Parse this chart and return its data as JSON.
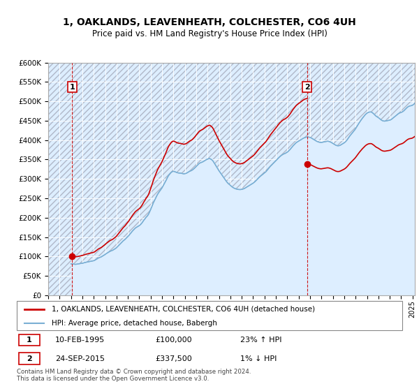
{
  "title": "1, OAKLANDS, LEAVENHEATH, COLCHESTER, CO6 4UH",
  "subtitle": "Price paid vs. HM Land Registry's House Price Index (HPI)",
  "legend_line1": "1, OAKLANDS, LEAVENHEATH, COLCHESTER, CO6 4UH (detached house)",
  "legend_line2": "HPI: Average price, detached house, Babergh",
  "annotation1_label": "1",
  "annotation1_date": "10-FEB-1995",
  "annotation1_price": "£100,000",
  "annotation1_hpi": "23% ↑ HPI",
  "annotation2_label": "2",
  "annotation2_date": "24-SEP-2015",
  "annotation2_price": "£337,500",
  "annotation2_hpi": "1% ↓ HPI",
  "sale1_x": 1995.11,
  "sale1_y": 100000,
  "sale2_x": 2015.73,
  "sale2_y": 337500,
  "xmin": 1993.0,
  "xmax": 2025.2,
  "ymin": 0,
  "ymax": 600000,
  "yticks": [
    0,
    50000,
    100000,
    150000,
    200000,
    250000,
    300000,
    350000,
    400000,
    450000,
    500000,
    550000,
    600000
  ],
  "ytick_labels": [
    "£0",
    "£50K",
    "£100K",
    "£150K",
    "£200K",
    "£250K",
    "£300K",
    "£350K",
    "£400K",
    "£450K",
    "£500K",
    "£550K",
    "£600K"
  ],
  "line_color_red": "#cc0000",
  "line_color_blue": "#7aafd4",
  "plot_bg": "#ddeeff",
  "footer": "Contains HM Land Registry data © Crown copyright and database right 2024.\nThis data is licensed under the Open Government Licence v3.0.",
  "hpi_monthly": {
    "start_year": 1995,
    "start_month": 1,
    "values": [
      81000,
      80500,
      80200,
      80000,
      79800,
      79600,
      80000,
      80300,
      80600,
      81000,
      81500,
      82000,
      82500,
      83000,
      83800,
      84500,
      85000,
      85500,
      86000,
      86500,
      87000,
      87500,
      88000,
      88500,
      89000,
      90000,
      91500,
      93000,
      94500,
      96000,
      97000,
      98000,
      99000,
      100500,
      102000,
      103500,
      105000,
      107000,
      108500,
      110000,
      111500,
      113000,
      114000,
      115000,
      116000,
      117500,
      119000,
      120500,
      122500,
      125000,
      127500,
      130000,
      132500,
      135000,
      137500,
      140000,
      142000,
      144000,
      146500,
      149000,
      151500,
      154000,
      157000,
      160000,
      163000,
      166000,
      168500,
      171000,
      173500,
      175000,
      176500,
      178000,
      179500,
      181500,
      184000,
      187000,
      190500,
      194000,
      197000,
      200500,
      203000,
      206000,
      210000,
      215500,
      221000,
      227000,
      233000,
      239000,
      244000,
      249000,
      254000,
      259000,
      263000,
      266500,
      270000,
      273500,
      277000,
      281500,
      286000,
      290500,
      295000,
      300000,
      305000,
      309000,
      312000,
      315000,
      317500,
      319000,
      319500,
      319000,
      318000,
      317000,
      316000,
      315500,
      315000,
      315000,
      314500,
      314000,
      313500,
      313000,
      313500,
      314000,
      315000,
      316500,
      318000,
      319500,
      320500,
      321500,
      323000,
      325000,
      327000,
      329500,
      332000,
      334500,
      337000,
      339500,
      341000,
      342000,
      343000,
      344000,
      345500,
      347000,
      348500,
      350000,
      351000,
      352000,
      352500,
      351500,
      350000,
      348000,
      345000,
      341000,
      337000,
      333000,
      329000,
      325000,
      321000,
      317500,
      314000,
      310500,
      307000,
      303500,
      300000,
      296500,
      293000,
      290000,
      287500,
      285500,
      283500,
      281000,
      279000,
      277500,
      276000,
      275000,
      274000,
      273500,
      273000,
      272500,
      272500,
      272500,
      273000,
      273500,
      274500,
      275500,
      277000,
      278500,
      280000,
      281500,
      283000,
      284500,
      286000,
      287500,
      289000,
      291000,
      293000,
      295500,
      298000,
      300500,
      303000,
      305500,
      307500,
      309500,
      311500,
      313500,
      315500,
      317500,
      320000,
      323000,
      326000,
      329000,
      332000,
      334500,
      337000,
      339500,
      342000,
      344500,
      347000,
      349500,
      352000,
      354500,
      357000,
      359000,
      361000,
      362500,
      364000,
      365000,
      366000,
      367500,
      369000,
      371000,
      373500,
      376000,
      379000,
      382000,
      385000,
      387500,
      390000,
      392500,
      394500,
      396000,
      397500,
      399000,
      400500,
      402000,
      403500,
      405000,
      406000,
      407000,
      407500,
      408000,
      408000,
      407500,
      407000,
      406000,
      404500,
      403000,
      401500,
      400000,
      398500,
      397000,
      396000,
      395000,
      394500,
      394000,
      394000,
      394500,
      395000,
      395500,
      396000,
      396500,
      397000,
      397000,
      396500,
      395500,
      394500,
      393000,
      391500,
      390000,
      388500,
      387000,
      386000,
      385500,
      385500,
      386000,
      387000,
      388500,
      390000,
      391500,
      393000,
      395000,
      397500,
      400500,
      404000,
      407500,
      411000,
      414000,
      417000,
      420000,
      423000,
      426000,
      429500,
      433500,
      437500,
      441500,
      445500,
      449000,
      452500,
      456000,
      459000,
      462000,
      465000,
      467500,
      469500,
      471000,
      472000,
      472500,
      472500,
      472000,
      470000,
      468000,
      465500,
      463000,
      461000,
      459500,
      458000,
      456000,
      454000,
      452000,
      450500,
      449500,
      449000,
      449000,
      449500,
      450000,
      450500,
      451000,
      451500,
      452500,
      454000,
      456000,
      458000,
      460000,
      462000,
      464000,
      466000,
      468000,
      469500,
      470500,
      471500,
      472500,
      474000,
      476000,
      478500,
      481000,
      483500,
      485500,
      487000,
      488000,
      488500,
      489000,
      490000,
      492000,
      494000,
      496000,
      497500,
      498500,
      499000,
      499000,
      498500,
      498000,
      497500,
      497000
    ]
  }
}
